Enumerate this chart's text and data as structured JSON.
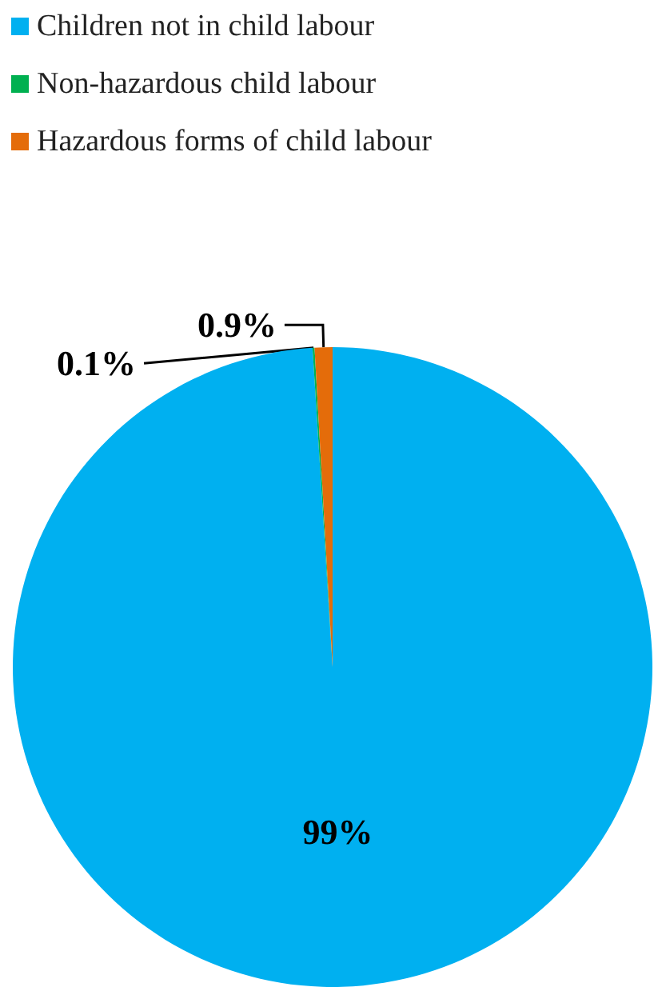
{
  "chart_data": {
    "type": "pie",
    "categories": [
      "Children not in child labour",
      "Non-hazardous child labour",
      "Hazardous forms of child labour"
    ],
    "values": [
      99,
      0.1,
      0.9
    ],
    "colors": [
      "#00b0f0",
      "#00b050",
      "#e46c0a"
    ],
    "value_labels": [
      "99%",
      "0.1%",
      "0.9%"
    ],
    "legend": "top left"
  }
}
